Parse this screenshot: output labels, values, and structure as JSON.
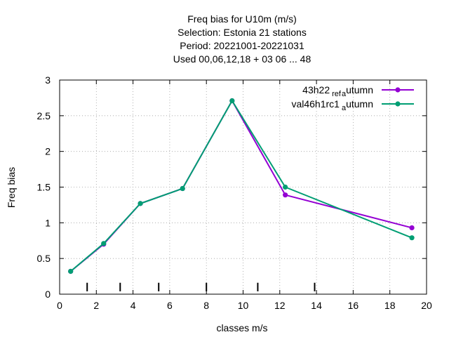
{
  "chart_data": {
    "type": "line",
    "title_lines": [
      "Freq bias  for U10m (m/s)",
      "Selection: Estonia      21 stations",
      "Period: 20221001-20221031",
      "Used  00,06,12,18  + 03 06 ... 48"
    ],
    "xlabel": "classes m/s",
    "ylabel": "Freq bias",
    "xlim": [
      0,
      20
    ],
    "ylim": [
      0,
      3
    ],
    "xticks": [
      0,
      2,
      4,
      6,
      8,
      10,
      12,
      14,
      16,
      18,
      20
    ],
    "xtick_labels": [
      "0",
      "2",
      "4",
      "6",
      "8",
      "10",
      "12",
      "14",
      "16",
      "18",
      "20"
    ],
    "yticks": [
      0,
      0.5,
      1,
      1.5,
      2,
      2.5,
      3
    ],
    "ytick_labels": [
      "0",
      "0.5",
      "1",
      "1.5",
      "2",
      "2.5",
      "3"
    ],
    "grid": true,
    "legend_position": "top-right",
    "class_boundaries": [
      1.5,
      3.3,
      5.4,
      8.0,
      10.8,
      13.9
    ],
    "series": [
      {
        "name_parts": [
          "43h22",
          "ref",
          "a",
          "utumn"
        ],
        "color": "#9400d3",
        "x": [
          0.6,
          2.4,
          4.4,
          6.7,
          9.4,
          12.3,
          19.2
        ],
        "y": [
          0.32,
          0.7,
          1.27,
          1.48,
          2.71,
          1.39,
          0.93
        ]
      },
      {
        "name_parts": [
          "val46h1rc1",
          "",
          "a",
          "utumn"
        ],
        "color": "#009e73",
        "x": [
          0.6,
          2.4,
          4.4,
          6.7,
          9.4,
          12.3,
          19.2
        ],
        "y": [
          0.32,
          0.71,
          1.27,
          1.48,
          2.71,
          1.5,
          0.79
        ]
      }
    ]
  }
}
